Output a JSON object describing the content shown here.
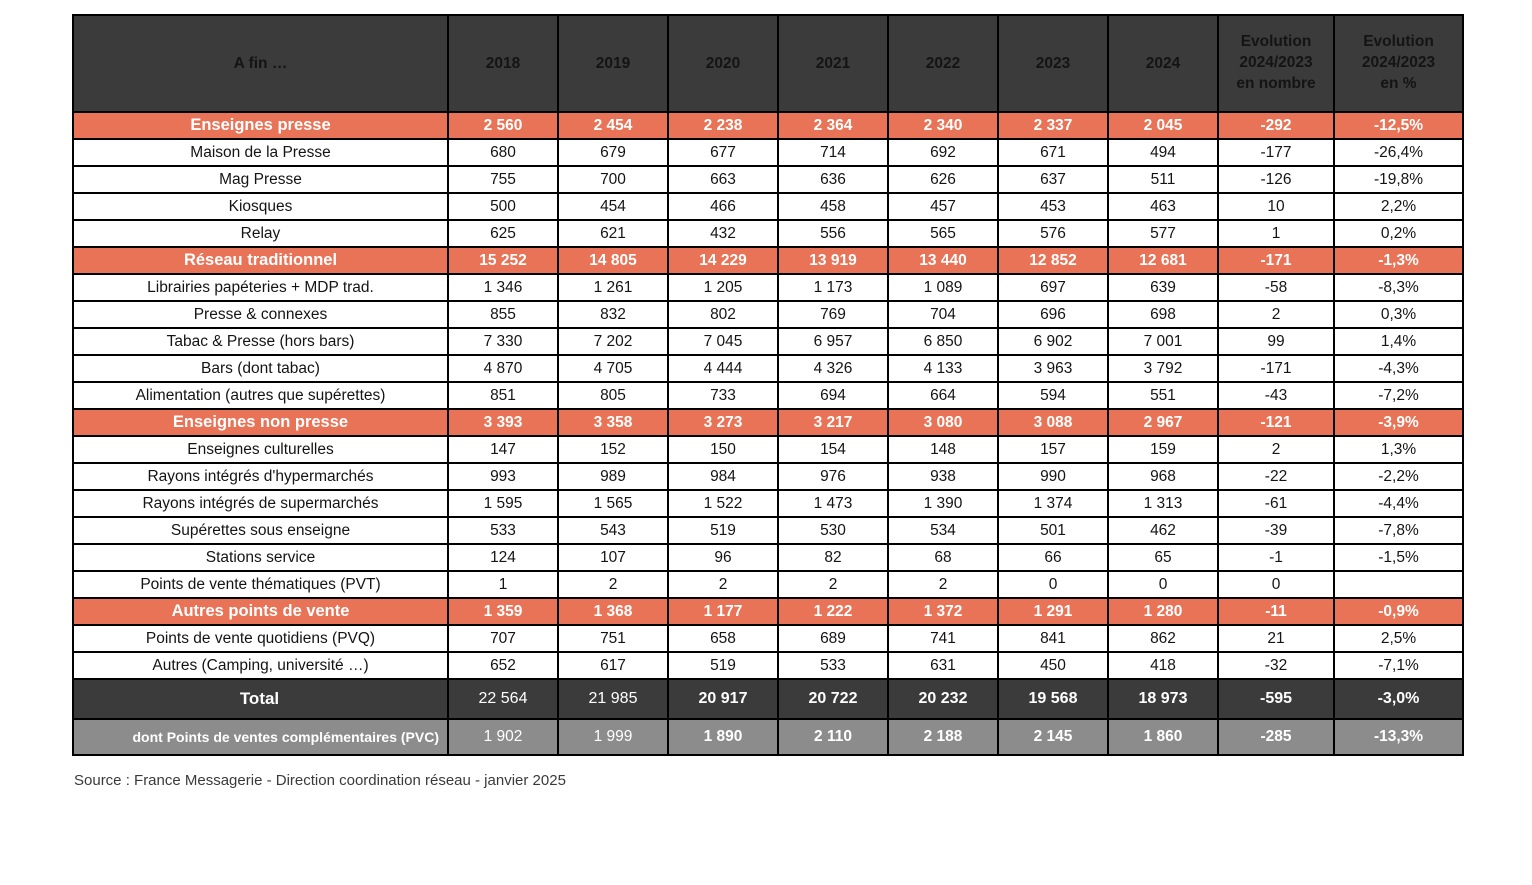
{
  "chart_data": {
    "type": "table",
    "header": {
      "label_col": "A fin …",
      "years": [
        "2018",
        "2019",
        "2020",
        "2021",
        "2022",
        "2023",
        "2024"
      ],
      "evolution_nombre": "Evolution\n2024/2023\nen nombre",
      "evolution_pct": "Evolution\n2024/2023\nen %"
    },
    "rows": [
      {
        "label": "Enseignes presse",
        "style": "section",
        "values": [
          "2 560",
          "2 454",
          "2 238",
          "2 364",
          "2 340",
          "2 337",
          "2 045",
          "-292",
          "-12,5%"
        ]
      },
      {
        "label": "Maison de la Presse",
        "style": "data",
        "values": [
          "680",
          "679",
          "677",
          "714",
          "692",
          "671",
          "494",
          "-177",
          "-26,4%"
        ]
      },
      {
        "label": "Mag Presse",
        "style": "data",
        "values": [
          "755",
          "700",
          "663",
          "636",
          "626",
          "637",
          "511",
          "-126",
          "-19,8%"
        ]
      },
      {
        "label": "Kiosques",
        "style": "data",
        "values": [
          "500",
          "454",
          "466",
          "458",
          "457",
          "453",
          "463",
          "10",
          "2,2%"
        ]
      },
      {
        "label": "Relay",
        "style": "data",
        "values": [
          "625",
          "621",
          "432",
          "556",
          "565",
          "576",
          "577",
          "1",
          "0,2%"
        ]
      },
      {
        "label": "Réseau traditionnel",
        "style": "section",
        "values": [
          "15 252",
          "14 805",
          "14 229",
          "13 919",
          "13 440",
          "12 852",
          "12 681",
          "-171",
          "-1,3%"
        ]
      },
      {
        "label": "Librairies papéteries + MDP trad.",
        "style": "data",
        "values": [
          "1 346",
          "1 261",
          "1 205",
          "1 173",
          "1 089",
          "697",
          "639",
          "-58",
          "-8,3%"
        ]
      },
      {
        "label": "Presse & connexes",
        "style": "data",
        "values": [
          "855",
          "832",
          "802",
          "769",
          "704",
          "696",
          "698",
          "2",
          "0,3%"
        ]
      },
      {
        "label": "Tabac & Presse (hors bars)",
        "style": "data",
        "values": [
          "7 330",
          "7 202",
          "7 045",
          "6 957",
          "6 850",
          "6 902",
          "7 001",
          "99",
          "1,4%"
        ]
      },
      {
        "label": "Bars (dont tabac)",
        "style": "data",
        "values": [
          "4 870",
          "4 705",
          "4 444",
          "4 326",
          "4 133",
          "3 963",
          "3 792",
          "-171",
          "-4,3%"
        ]
      },
      {
        "label": "Alimentation (autres que supérettes)",
        "style": "data",
        "values": [
          "851",
          "805",
          "733",
          "694",
          "664",
          "594",
          "551",
          "-43",
          "-7,2%"
        ]
      },
      {
        "label": "Enseignes non presse",
        "style": "section",
        "values": [
          "3 393",
          "3 358",
          "3 273",
          "3 217",
          "3 080",
          "3 088",
          "2 967",
          "-121",
          "-3,9%"
        ]
      },
      {
        "label": "Enseignes culturelles",
        "style": "data",
        "values": [
          "147",
          "152",
          "150",
          "154",
          "148",
          "157",
          "159",
          "2",
          "1,3%"
        ]
      },
      {
        "label": "Rayons intégrés d'hypermarchés",
        "style": "data",
        "values": [
          "993",
          "989",
          "984",
          "976",
          "938",
          "990",
          "968",
          "-22",
          "-2,2%"
        ]
      },
      {
        "label": "Rayons intégrés de supermarchés",
        "style": "data",
        "values": [
          "1 595",
          "1 565",
          "1 522",
          "1 473",
          "1 390",
          "1 374",
          "1 313",
          "-61",
          "-4,4%"
        ]
      },
      {
        "label": "Supérettes sous enseigne",
        "style": "data",
        "values": [
          "533",
          "543",
          "519",
          "530",
          "534",
          "501",
          "462",
          "-39",
          "-7,8%"
        ]
      },
      {
        "label": "Stations service",
        "style": "data",
        "values": [
          "124",
          "107",
          "96",
          "82",
          "68",
          "66",
          "65",
          "-1",
          "-1,5%"
        ]
      },
      {
        "label": "Points de vente thématiques (PVT)",
        "style": "data",
        "values": [
          "1",
          "2",
          "2",
          "2",
          "2",
          "0",
          "0",
          "0",
          ""
        ]
      },
      {
        "label": "Autres points de vente",
        "style": "section",
        "values": [
          "1 359",
          "1 368",
          "1 177",
          "1 222",
          "1 372",
          "1 291",
          "1 280",
          "-11",
          "-0,9%"
        ]
      },
      {
        "label": "Points de vente quotidiens (PVQ)",
        "style": "data",
        "values": [
          "707",
          "751",
          "658",
          "689",
          "741",
          "841",
          "862",
          "21",
          "2,5%"
        ]
      },
      {
        "label": "Autres (Camping, université …)",
        "style": "data",
        "values": [
          "652",
          "617",
          "519",
          "533",
          "631",
          "450",
          "418",
          "-32",
          "-7,1%"
        ]
      },
      {
        "label": "Total",
        "style": "total",
        "values": [
          "22 564",
          "21 985",
          "20 917",
          "20 722",
          "20 232",
          "19 568",
          "18 973",
          "-595",
          "-3,0%"
        ]
      },
      {
        "label": "dont Points de ventes complémentaires (PVC)",
        "style": "subtotal",
        "values": [
          "1 902",
          "1 999",
          "1 890",
          "2 110",
          "2 188",
          "2 145",
          "1 860",
          "-285",
          "-13,3%"
        ]
      }
    ]
  },
  "source_note": "Source : France Messagerie  - Direction coordination réseau - janvier 2025",
  "colors": {
    "header_bg": "#3B3B3B",
    "section_bg": "#E87357",
    "total_bg": "#3B3B3B",
    "subtotal_bg": "#8C8C8C",
    "border_color": "#000000",
    "text_dark": "#141414",
    "text_light": "#FFFFFF"
  }
}
